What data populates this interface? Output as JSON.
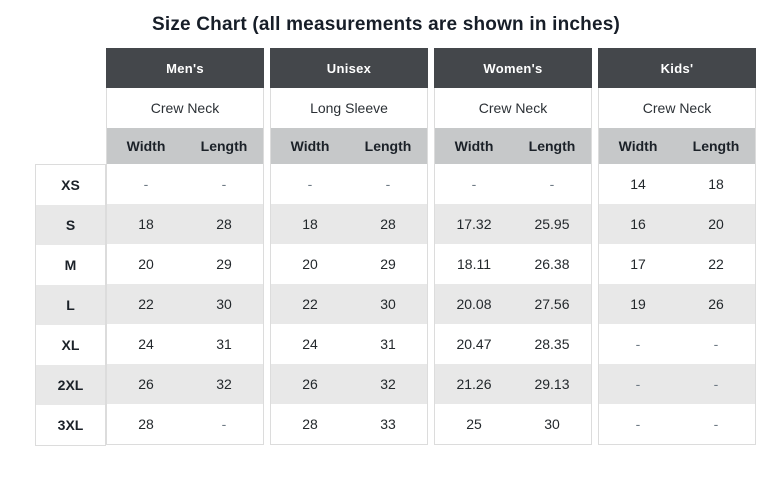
{
  "title": "Size Chart (all measurements are shown in inches)",
  "chart_data": {
    "type": "table",
    "title": "Size Chart (all measurements are shown in inches)",
    "units": "inches",
    "groups": [
      {
        "name": "Men's",
        "style": "Crew Neck",
        "columns": [
          "Width",
          "Length"
        ]
      },
      {
        "name": "Unisex",
        "style": "Long Sleeve",
        "columns": [
          "Width",
          "Length"
        ]
      },
      {
        "name": "Women's",
        "style": "Crew Neck",
        "columns": [
          "Width",
          "Length"
        ]
      },
      {
        "name": "Kids'",
        "style": "Crew Neck",
        "columns": [
          "Width",
          "Length"
        ]
      }
    ],
    "rows": [
      {
        "size": "XS",
        "values": [
          "-",
          "-",
          "-",
          "-",
          "-",
          "-",
          "14",
          "18"
        ]
      },
      {
        "size": "S",
        "values": [
          "18",
          "28",
          "18",
          "28",
          "17.32",
          "25.95",
          "16",
          "20"
        ]
      },
      {
        "size": "M",
        "values": [
          "20",
          "29",
          "20",
          "29",
          "18.11",
          "26.38",
          "17",
          "22"
        ]
      },
      {
        "size": "L",
        "values": [
          "22",
          "30",
          "22",
          "30",
          "20.08",
          "27.56",
          "19",
          "26"
        ]
      },
      {
        "size": "XL",
        "values": [
          "24",
          "31",
          "24",
          "31",
          "20.47",
          "28.35",
          "-",
          "-"
        ]
      },
      {
        "size": "2XL",
        "values": [
          "26",
          "32",
          "26",
          "32",
          "21.26",
          "29.13",
          "-",
          "-"
        ]
      },
      {
        "size": "3XL",
        "values": [
          "28",
          "-",
          "28",
          "33",
          "25",
          "30",
          "-",
          "-"
        ]
      }
    ]
  },
  "colors": {
    "group_header_bg": "#44474b",
    "group_header_text": "#ffffff",
    "subheader_bg": "#c6c8c9",
    "stripe_bg": "#e8e8e8",
    "border": "#dcdcdc",
    "text": "#21262b",
    "dash_text": "#6e7a85"
  }
}
